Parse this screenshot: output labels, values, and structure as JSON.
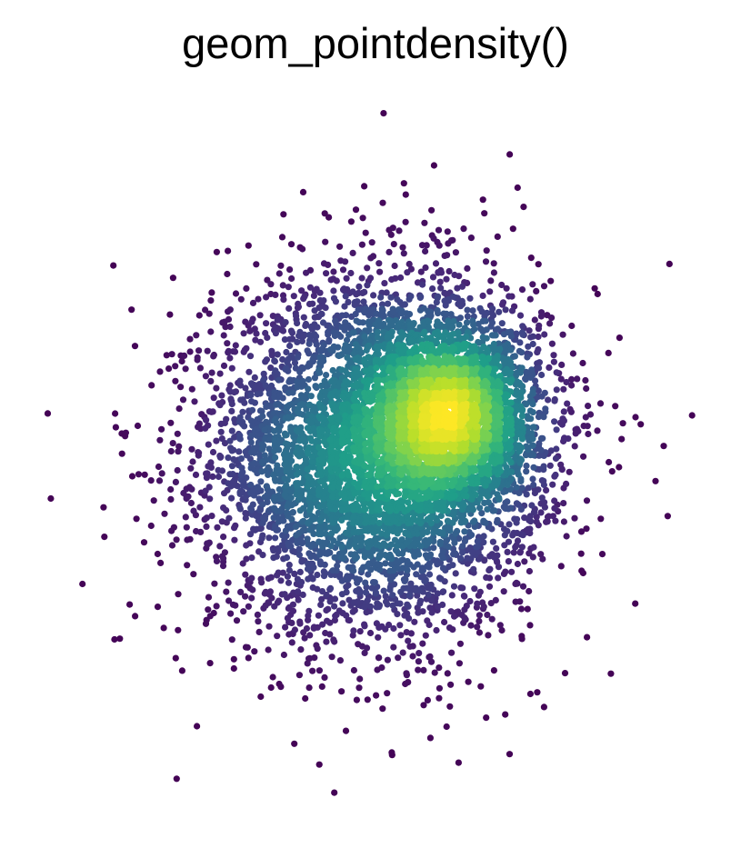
{
  "chart_data": {
    "type": "scatter",
    "title": "geom_pointdensity()",
    "xlabel": "",
    "ylabel": "",
    "xlim": [
      -4.2,
      4.2
    ],
    "ylim": [
      -4.2,
      4.0
    ],
    "grid": false,
    "axes": "none",
    "legend": "none",
    "color_encoding": "local point density (viridis scale)",
    "colorscale": [
      "#440154",
      "#482878",
      "#3e4989",
      "#31688e",
      "#26828e",
      "#1f9e89",
      "#35b779",
      "#6ece58",
      "#b5de2b",
      "#fde725"
    ],
    "components": [
      {
        "name": "",
        "center": [
          0.0,
          0.0
        ],
        "sd": [
          1.0,
          1.0
        ],
        "n": 5200
      },
      {
        "name": "",
        "center": [
          1.0,
          0.5
        ],
        "sd": [
          0.5,
          0.5
        ],
        "n": 2300
      }
    ],
    "outliers": [
      [
        0.1,
        3.9
      ],
      [
        0.35,
        3.1
      ],
      [
        1.75,
        3.05
      ],
      [
        0.95,
        2.45
      ],
      [
        0.35,
        2.3
      ],
      [
        -0.9,
        2.35
      ],
      [
        2.7,
        1.9
      ],
      [
        3.9,
        0.45
      ],
      [
        3.55,
        0.1
      ],
      [
        3.45,
        -0.3
      ],
      [
        -4.0,
        -0.5
      ],
      [
        -3.35,
        -0.6
      ],
      [
        3.6,
        -0.7
      ],
      [
        -3.15,
        -2.1
      ],
      [
        -2.45,
        -3.7
      ],
      [
        0.2,
        -3.4
      ],
      [
        -2.2,
        -3.1
      ],
      [
        3.2,
        -1.7
      ],
      [
        -2.85,
        -1.0
      ],
      [
        2.9,
        -2.5
      ],
      [
        -1.0,
        -3.3
      ]
    ]
  }
}
